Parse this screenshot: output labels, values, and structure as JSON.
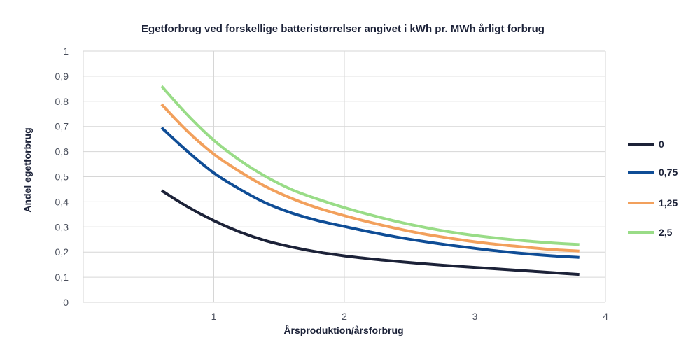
{
  "chart_data": {
    "type": "line",
    "title": "Egetforbrug ved forskellige batteristørrelser angivet i kWh pr. MWh årligt forbrug",
    "xlabel": "Årsproduktion/årsforbrug",
    "ylabel": "Andel egetforbrug",
    "xlim": [
      0,
      4
    ],
    "ylim": [
      0,
      1
    ],
    "x_ticks": [
      "1",
      "2",
      "3",
      "4"
    ],
    "y_ticks": [
      "0",
      "0,1",
      "0,2",
      "0,3",
      "0,4",
      "0,5",
      "0,6",
      "0,7",
      "0,8",
      "0,9",
      "1"
    ],
    "grid": true,
    "legend_position": "right",
    "series": [
      {
        "name": "0",
        "color": "#1c2238",
        "points": [
          [
            0.6,
            0.445
          ],
          [
            0.8,
            0.38
          ],
          [
            1.0,
            0.325
          ],
          [
            1.2,
            0.28
          ],
          [
            1.4,
            0.245
          ],
          [
            1.6,
            0.22
          ],
          [
            1.8,
            0.2
          ],
          [
            2.0,
            0.185
          ],
          [
            2.2,
            0.173
          ],
          [
            2.4,
            0.163
          ],
          [
            2.6,
            0.154
          ],
          [
            2.8,
            0.146
          ],
          [
            3.0,
            0.139
          ],
          [
            3.2,
            0.132
          ],
          [
            3.4,
            0.125
          ],
          [
            3.6,
            0.118
          ],
          [
            3.8,
            0.111
          ]
        ]
      },
      {
        "name": "0,75",
        "color": "#0f4d96",
        "points": [
          [
            0.6,
            0.695
          ],
          [
            0.8,
            0.6
          ],
          [
            1.0,
            0.515
          ],
          [
            1.2,
            0.45
          ],
          [
            1.4,
            0.395
          ],
          [
            1.6,
            0.355
          ],
          [
            1.8,
            0.325
          ],
          [
            2.0,
            0.302
          ],
          [
            2.2,
            0.28
          ],
          [
            2.4,
            0.26
          ],
          [
            2.6,
            0.243
          ],
          [
            2.8,
            0.228
          ],
          [
            3.0,
            0.215
          ],
          [
            3.2,
            0.203
          ],
          [
            3.4,
            0.193
          ],
          [
            3.6,
            0.185
          ],
          [
            3.8,
            0.179
          ]
        ]
      },
      {
        "name": "1,25",
        "color": "#f2a05c",
        "points": [
          [
            0.6,
            0.788
          ],
          [
            0.8,
            0.68
          ],
          [
            1.0,
            0.59
          ],
          [
            1.2,
            0.52
          ],
          [
            1.4,
            0.46
          ],
          [
            1.6,
            0.413
          ],
          [
            1.8,
            0.375
          ],
          [
            2.0,
            0.345
          ],
          [
            2.2,
            0.318
          ],
          [
            2.4,
            0.294
          ],
          [
            2.6,
            0.273
          ],
          [
            2.8,
            0.256
          ],
          [
            3.0,
            0.241
          ],
          [
            3.2,
            0.229
          ],
          [
            3.4,
            0.219
          ],
          [
            3.6,
            0.21
          ],
          [
            3.8,
            0.204
          ]
        ]
      },
      {
        "name": "2,5",
        "color": "#99dc87",
        "points": [
          [
            0.6,
            0.86
          ],
          [
            0.8,
            0.745
          ],
          [
            1.0,
            0.645
          ],
          [
            1.2,
            0.565
          ],
          [
            1.4,
            0.5
          ],
          [
            1.6,
            0.448
          ],
          [
            1.8,
            0.41
          ],
          [
            2.0,
            0.377
          ],
          [
            2.2,
            0.348
          ],
          [
            2.4,
            0.322
          ],
          [
            2.6,
            0.3
          ],
          [
            2.8,
            0.281
          ],
          [
            3.0,
            0.266
          ],
          [
            3.2,
            0.254
          ],
          [
            3.4,
            0.244
          ],
          [
            3.6,
            0.236
          ],
          [
            3.8,
            0.23
          ]
        ]
      }
    ]
  }
}
